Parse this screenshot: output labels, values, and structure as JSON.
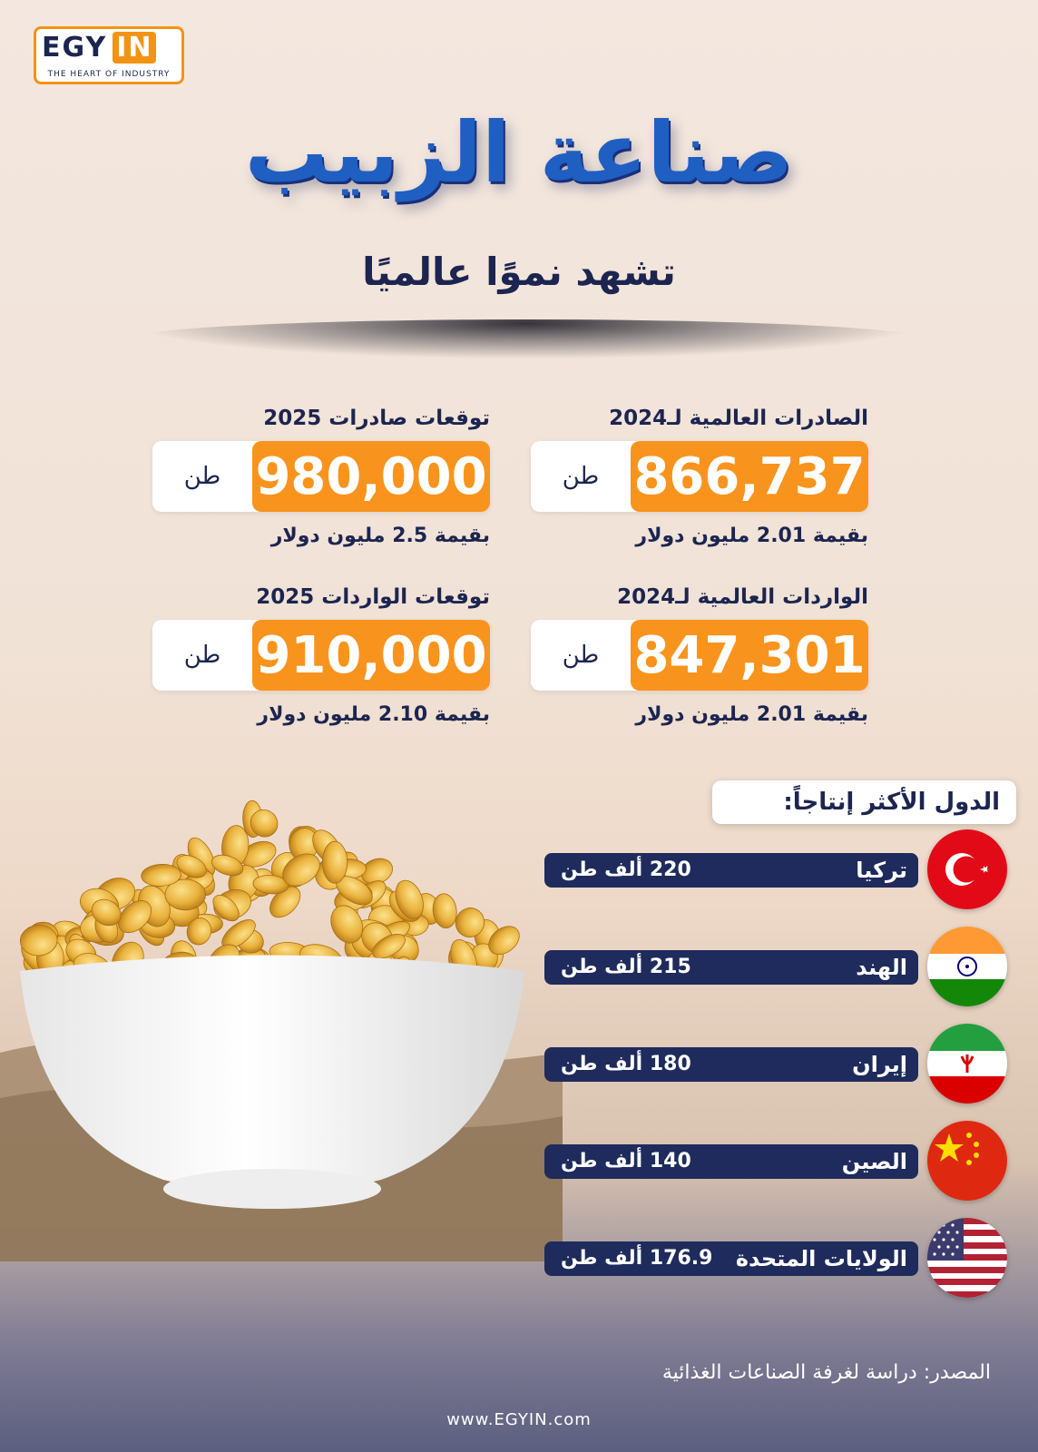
{
  "logo": {
    "brand_left": "EGY",
    "brand_right": "IN",
    "tagline": "THE HEART OF INDUSTRY"
  },
  "title": "صناعة الزبيب",
  "subtitle": "تشهد نموًا عالميًا",
  "stats": {
    "exports_2024": {
      "label": "الصادرات العالمية لـ2024",
      "number": "866,737",
      "unit": "طن",
      "value": "بقيمة 2.01 مليون دولار"
    },
    "exports_2025": {
      "label": "توقعات صادرات 2025",
      "number": "980,000",
      "unit": "طن",
      "value": "بقيمة 2.5 مليون دولار"
    },
    "imports_2024": {
      "label": "الواردات العالمية لـ2024",
      "number": "847,301",
      "unit": "طن",
      "value": "بقيمة 2.01 مليون دولار"
    },
    "imports_2025": {
      "label": "توقعات الواردات 2025",
      "number": "910,000",
      "unit": "طن",
      "value": "بقيمة 2.10 مليون دولار"
    }
  },
  "countries": {
    "heading": "الدول الأكثر إنتاجاً:",
    "items": [
      {
        "name": "تركيا",
        "value": "220 ألف طن",
        "flag": "turkey-flag-icon"
      },
      {
        "name": "الهند",
        "value": "215 ألف طن",
        "flag": "india-flag-icon"
      },
      {
        "name": "إيران",
        "value": "180 ألف طن",
        "flag": "iran-flag-icon"
      },
      {
        "name": "الصين",
        "value": "140 ألف طن",
        "flag": "china-flag-icon"
      },
      {
        "name": "الولايات المتحدة",
        "value": "176.9 ألف طن",
        "flag": "usa-flag-icon"
      }
    ]
  },
  "source": "المصدر: دراسة لغرفة الصناعات الغذائية",
  "website": "www.EGYIN.com",
  "colors": {
    "navy": "#1c2550",
    "orange": "#f8941d",
    "blue": "#1f5fc2",
    "bar": "#1e2b5c"
  }
}
